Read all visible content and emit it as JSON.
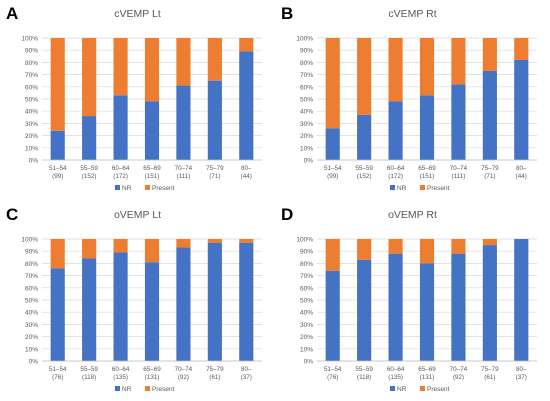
{
  "colors": {
    "nr": "#4472C4",
    "present": "#ED7D31",
    "grid": "#D9D9D9",
    "axis_text": "#595959"
  },
  "chart_data": [
    {
      "type": "bar",
      "stacked": true,
      "panel_letter": "A",
      "title": "cVEMP Lt",
      "categories": [
        "51–54",
        "55–59",
        "60–64",
        "65–69",
        "70–74",
        "75–79",
        "80–"
      ],
      "counts": [
        "(99)",
        "(152)",
        "(172)",
        "(151)",
        "(111)",
        "(71)",
        "(44)"
      ],
      "series": [
        {
          "name": "NR",
          "values": [
            24,
            36,
            53,
            48,
            61,
            65,
            89
          ]
        },
        {
          "name": "Present",
          "values": [
            76,
            64,
            47,
            52,
            39,
            35,
            11
          ]
        }
      ],
      "y_ticks": [
        "0%",
        "10%",
        "20%",
        "30%",
        "40%",
        "50%",
        "60%",
        "70%",
        "80%",
        "90%",
        "100%"
      ],
      "ylim": [
        0,
        100
      ],
      "grid": true,
      "legend": "bottom"
    },
    {
      "type": "bar",
      "stacked": true,
      "panel_letter": "B",
      "title": "cVEMP Rt",
      "categories": [
        "51–54",
        "55–59",
        "60–64",
        "65–69",
        "70–74",
        "75–79",
        "80–"
      ],
      "counts": [
        "(99)",
        "(152)",
        "(172)",
        "(151)",
        "(111)",
        "(71)",
        "(44)"
      ],
      "series": [
        {
          "name": "NR",
          "values": [
            26,
            37,
            48,
            53,
            62,
            73,
            82
          ]
        },
        {
          "name": "Present",
          "values": [
            74,
            63,
            52,
            47,
            38,
            27,
            18
          ]
        }
      ],
      "y_ticks": [
        "0%",
        "10%",
        "20%",
        "30%",
        "40%",
        "50%",
        "60%",
        "70%",
        "80%",
        "90%",
        "100%"
      ],
      "ylim": [
        0,
        100
      ],
      "grid": true,
      "legend": "bottom"
    },
    {
      "type": "bar",
      "stacked": true,
      "panel_letter": "C",
      "title": "oVEMP Lt",
      "categories": [
        "51–54",
        "55–59",
        "60–64",
        "65–69",
        "70–74",
        "75–79",
        "80–"
      ],
      "counts": [
        "(76)",
        "(118)",
        "(135)",
        "(131)",
        "(92)",
        "(61)",
        "(37)"
      ],
      "series": [
        {
          "name": "NR",
          "values": [
            76,
            84,
            89,
            81,
            93,
            97,
            97
          ]
        },
        {
          "name": "Present",
          "values": [
            24,
            16,
            11,
            19,
            7,
            3,
            3
          ]
        }
      ],
      "y_ticks": [
        "0%",
        "10%",
        "20%",
        "30%",
        "40%",
        "50%",
        "60%",
        "70%",
        "80%",
        "90%",
        "100%"
      ],
      "ylim": [
        0,
        100
      ],
      "grid": true,
      "legend": "bottom"
    },
    {
      "type": "bar",
      "stacked": true,
      "panel_letter": "D",
      "title": "oVEMP Rt",
      "categories": [
        "51–54",
        "55–59",
        "60–64",
        "65–69",
        "70–74",
        "75–79",
        "80–"
      ],
      "counts": [
        "(76)",
        "(118)",
        "(135)",
        "(131)",
        "(92)",
        "(61)",
        "(37)"
      ],
      "series": [
        {
          "name": "NR",
          "values": [
            74,
            83,
            88,
            80,
            88,
            95,
            100
          ]
        },
        {
          "name": "Present",
          "values": [
            26,
            17,
            12,
            20,
            12,
            5,
            0
          ]
        }
      ],
      "y_ticks": [
        "0%",
        "10%",
        "20%",
        "30%",
        "40%",
        "50%",
        "60%",
        "70%",
        "80%",
        "90%",
        "100%"
      ],
      "ylim": [
        0,
        100
      ],
      "grid": true,
      "legend": "bottom"
    }
  ]
}
